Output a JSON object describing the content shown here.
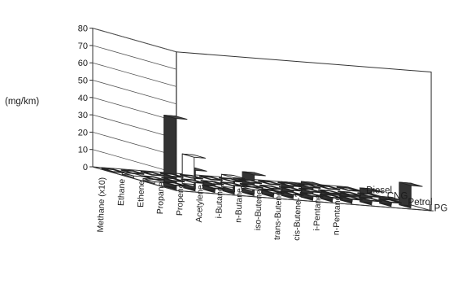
{
  "chart_data": {
    "type": "bar",
    "title": "",
    "ylabel": "(mg/km)",
    "ylim": [
      0,
      80
    ],
    "yticks": [
      0,
      10,
      20,
      30,
      40,
      50,
      60,
      70,
      80
    ],
    "categories": [
      "Methane (x10)",
      "Ethane",
      "Ethene",
      "Propane",
      "Propene",
      "Acetylene",
      "i-Butane",
      "n-Butane",
      "iso-Butene",
      "trans-Butene",
      "cis-Butene-2",
      "i-Pentane",
      "n-Pentane"
    ],
    "series": [
      {
        "name": "Diesel",
        "values": [
          0,
          0,
          0,
          0,
          0,
          0,
          0,
          0,
          0,
          0,
          0,
          0,
          0
        ]
      },
      {
        "name": "CNG",
        "values": [
          1,
          0,
          0,
          0,
          0,
          0,
          0,
          0,
          0,
          0,
          0,
          0,
          0
        ]
      },
      {
        "name": "Petrol",
        "values": [
          1,
          0,
          17,
          0,
          7,
          1,
          0,
          0,
          0,
          0,
          0,
          0,
          0
        ]
      },
      {
        "name": "LPG",
        "values": [
          41,
          12,
          5,
          8,
          12,
          3,
          8,
          9,
          4,
          4,
          8,
          4,
          13
        ]
      }
    ],
    "bar_colors": [
      "#ffffff",
      "#ffffff",
      "#ffffff",
      "#333333"
    ],
    "legend": "none"
  }
}
